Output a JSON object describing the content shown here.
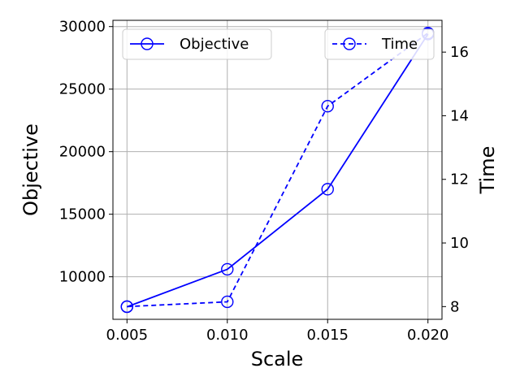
{
  "chart_data": {
    "type": "line",
    "xlabel": "Scale",
    "ylabel_left": "Objective",
    "ylabel_right": "Time",
    "x": [
      0.005,
      0.01,
      0.015,
      0.02
    ],
    "x_tick_labels": [
      "0.005",
      "0.010",
      "0.015",
      "0.020"
    ],
    "xlim": [
      0.0043,
      0.0207
    ],
    "ylim_left": [
      6600,
      30500
    ],
    "ylim_right": [
      7.6,
      17.0
    ],
    "left_ticks": [
      10000,
      15000,
      20000,
      25000,
      30000
    ],
    "left_tick_labels": [
      "10000",
      "15000",
      "20000",
      "25000",
      "30000"
    ],
    "right_ticks": [
      8,
      10,
      12,
      14,
      16
    ],
    "right_tick_labels": [
      "8",
      "10",
      "12",
      "14",
      "16"
    ],
    "grid": true,
    "series": [
      {
        "name": "Objective",
        "axis": "left",
        "line_style": "solid",
        "marker": "circle-open",
        "color": "#0000ff",
        "values": [
          7600,
          10600,
          17000,
          29400
        ],
        "legend_position": "top-left"
      },
      {
        "name": "Time",
        "axis": "right",
        "line_style": "dashed",
        "marker": "circle-open",
        "color": "#0000ff",
        "values": [
          8.0,
          8.15,
          14.3,
          16.6
        ],
        "legend_position": "top-right"
      }
    ]
  }
}
